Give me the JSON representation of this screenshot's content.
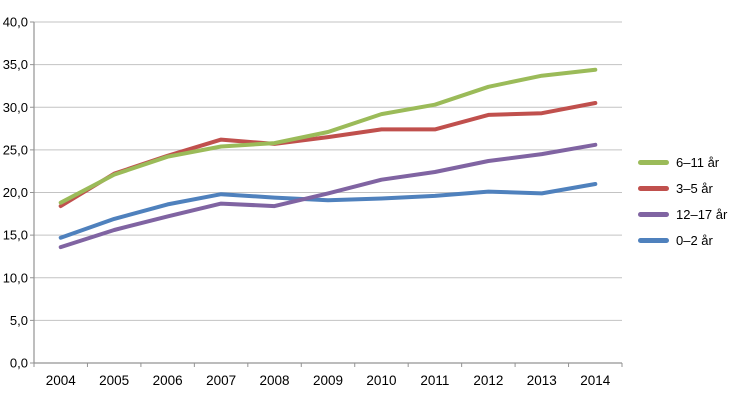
{
  "chart_data": {
    "type": "line",
    "title": "",
    "categories": [
      "2004",
      "2005",
      "2006",
      "2007",
      "2008",
      "2009",
      "2010",
      "2011",
      "2012",
      "2013",
      "2014"
    ],
    "series": [
      {
        "name": "6–11 år",
        "color": "#9BBB59",
        "values": [
          18.8,
          22.1,
          24.2,
          25.4,
          25.8,
          27.1,
          29.2,
          30.3,
          32.4,
          33.7,
          34.4
        ]
      },
      {
        "name": "3–5 år",
        "color": "#C0504D",
        "values": [
          18.4,
          22.2,
          24.3,
          26.2,
          25.7,
          26.5,
          27.4,
          27.4,
          29.1,
          29.3,
          30.5
        ]
      },
      {
        "name": "12–17 år",
        "color": "#8064A2",
        "values": [
          13.6,
          15.6,
          17.2,
          18.7,
          18.4,
          19.9,
          21.5,
          22.4,
          23.7,
          24.5,
          25.6
        ]
      },
      {
        "name": "0–2 år",
        "color": "#4F81BD",
        "values": [
          14.7,
          16.9,
          18.6,
          19.8,
          19.4,
          19.1,
          19.3,
          19.6,
          20.1,
          19.9,
          21.0
        ]
      }
    ],
    "xlabel": "",
    "ylabel": "",
    "ylim": [
      0,
      40
    ],
    "ytick_step": 5,
    "ytick_labels": [
      "0,0",
      "5,0",
      "10,0",
      "15,0",
      "20,0",
      "25,0",
      "30,0",
      "35,0",
      "40,0"
    ],
    "grid": true,
    "legend_position": "right",
    "decimal_separator": ","
  },
  "colors": {
    "background": "#FFFFFF",
    "gridline": "#C3C3C3",
    "axis": "#939393",
    "tick_label": "#000000"
  }
}
